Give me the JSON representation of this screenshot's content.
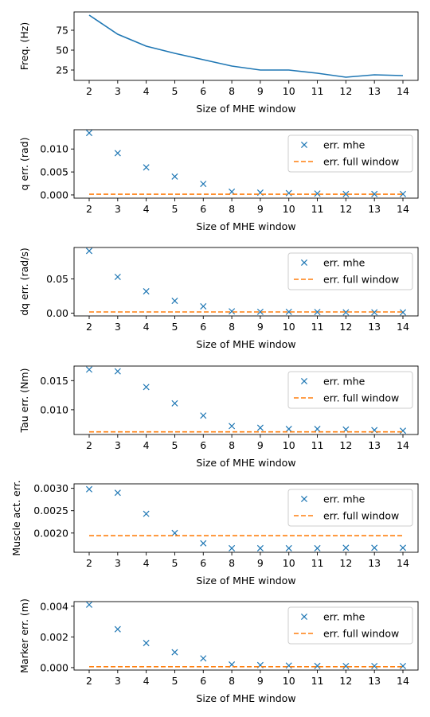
{
  "chart_data": [
    {
      "type": "line",
      "title": "",
      "xlabel": "Size of MHE window",
      "ylabel": "Freq. (Hz)",
      "categories": [
        "2",
        "3",
        "4",
        "5",
        "6",
        "8",
        "9",
        "10",
        "11",
        "12",
        "13",
        "14"
      ],
      "ylim": [
        12,
        98
      ],
      "yticks": [
        {
          "v": 25,
          "label": "25"
        },
        {
          "v": 50,
          "label": "50"
        },
        {
          "v": 75,
          "label": "75"
        }
      ],
      "series": [
        {
          "name": "freq",
          "style": "line",
          "color": "#1f77b4",
          "values": [
            94,
            70,
            55,
            46,
            38,
            30,
            25,
            25,
            21,
            16,
            19,
            18
          ]
        }
      ]
    },
    {
      "type": "line",
      "title": "",
      "xlabel": "Size of MHE window",
      "ylabel": "q err. (rad)",
      "categories": [
        "2",
        "3",
        "4",
        "5",
        "6",
        "8",
        "9",
        "10",
        "11",
        "12",
        "13",
        "14"
      ],
      "ylim": [
        -0.0007,
        0.0142
      ],
      "yticks": [
        {
          "v": 0.0,
          "label": "0.000"
        },
        {
          "v": 0.005,
          "label": "0.005"
        },
        {
          "v": 0.01,
          "label": "0.010"
        }
      ],
      "series": [
        {
          "name": "err. mhe",
          "style": "marker-x",
          "color": "#1f77b4",
          "values": [
            0.0135,
            0.0091,
            0.006,
            0.004,
            0.0024,
            0.0007,
            0.0005,
            0.0004,
            0.0003,
            0.0002,
            0.0002,
            0.0002
          ]
        },
        {
          "name": "err. full window",
          "style": "dashed",
          "color": "#ff7f0e",
          "values": [
            0.00015,
            0.00015,
            0.00015,
            0.00015,
            0.00015,
            0.00015,
            0.00015,
            0.00015,
            0.00015,
            0.00015,
            0.00015,
            0.00015
          ]
        }
      ]
    },
    {
      "type": "line",
      "title": "",
      "xlabel": "Size of MHE window",
      "ylabel": "dq err. (rad/s)",
      "categories": [
        "2",
        "3",
        "4",
        "5",
        "6",
        "8",
        "9",
        "10",
        "11",
        "12",
        "13",
        "14"
      ],
      "ylim": [
        -0.004,
        0.096
      ],
      "yticks": [
        {
          "v": 0.0,
          "label": "0.00"
        },
        {
          "v": 0.05,
          "label": "0.05"
        }
      ],
      "series": [
        {
          "name": "err. mhe",
          "style": "marker-x",
          "color": "#1f77b4",
          "values": [
            0.091,
            0.053,
            0.032,
            0.018,
            0.01,
            0.0027,
            0.002,
            0.002,
            0.0017,
            0.0012,
            0.0012,
            0.0012
          ]
        },
        {
          "name": "err. full window",
          "style": "dashed",
          "color": "#ff7f0e",
          "values": [
            0.0018,
            0.0018,
            0.0018,
            0.0018,
            0.0018,
            0.0018,
            0.0018,
            0.0018,
            0.0018,
            0.0018,
            0.0018,
            0.0018
          ]
        }
      ]
    },
    {
      "type": "line",
      "title": "",
      "xlabel": "Size of MHE window",
      "ylabel": "Tau err. (Nm)",
      "categories": [
        "2",
        "3",
        "4",
        "5",
        "6",
        "8",
        "9",
        "10",
        "11",
        "12",
        "13",
        "14"
      ],
      "ylim": [
        0.00575,
        0.0175
      ],
      "yticks": [
        {
          "v": 0.01,
          "label": "0.010"
        },
        {
          "v": 0.015,
          "label": "0.015"
        }
      ],
      "series": [
        {
          "name": "err. mhe",
          "style": "marker-x",
          "color": "#1f77b4",
          "values": [
            0.0169,
            0.0166,
            0.0139,
            0.0111,
            0.009,
            0.0072,
            0.0069,
            0.0067,
            0.0067,
            0.0066,
            0.0065,
            0.0064
          ]
        },
        {
          "name": "err. full window",
          "style": "dashed",
          "color": "#ff7f0e",
          "values": [
            0.0062,
            0.0062,
            0.0062,
            0.0062,
            0.0062,
            0.0062,
            0.0062,
            0.0062,
            0.0062,
            0.0062,
            0.0062,
            0.0062
          ]
        }
      ]
    },
    {
      "type": "line",
      "title": "",
      "xlabel": "Size of MHE window",
      "ylabel": "Muscle act. err.",
      "categories": [
        "2",
        "3",
        "4",
        "5",
        "6",
        "8",
        "9",
        "10",
        "11",
        "12",
        "13",
        "14"
      ],
      "ylim": [
        0.00157,
        0.0031
      ],
      "yticks": [
        {
          "v": 0.002,
          "label": "0.0020"
        },
        {
          "v": 0.0025,
          "label": "0.0025"
        },
        {
          "v": 0.003,
          "label": "0.0030"
        }
      ],
      "series": [
        {
          "name": "err. mhe",
          "style": "marker-x",
          "color": "#1f77b4",
          "values": [
            0.00298,
            0.0029,
            0.00243,
            0.002,
            0.00177,
            0.00166,
            0.00166,
            0.00166,
            0.00166,
            0.00167,
            0.00167,
            0.00167
          ]
        },
        {
          "name": "err. full window",
          "style": "dashed",
          "color": "#ff7f0e",
          "values": [
            0.00194,
            0.00194,
            0.00194,
            0.00194,
            0.00194,
            0.00194,
            0.00194,
            0.00194,
            0.00194,
            0.00194,
            0.00194,
            0.00194
          ]
        }
      ]
    },
    {
      "type": "line",
      "title": "",
      "xlabel": "Size of MHE window",
      "ylabel": "Marker err. (m)",
      "categories": [
        "2",
        "3",
        "4",
        "5",
        "6",
        "8",
        "9",
        "10",
        "11",
        "12",
        "13",
        "14"
      ],
      "ylim": [
        -0.00016,
        0.0043
      ],
      "yticks": [
        {
          "v": 0.0,
          "label": "0.000"
        },
        {
          "v": 0.002,
          "label": "0.002"
        },
        {
          "v": 0.004,
          "label": "0.004"
        }
      ],
      "series": [
        {
          "name": "err. mhe",
          "style": "marker-x",
          "color": "#1f77b4",
          "values": [
            0.0041,
            0.0025,
            0.0016,
            0.001,
            0.0006,
            0.0002,
            0.00016,
            0.00013,
            0.00011,
            0.0001,
            0.0001,
            0.0001
          ]
        },
        {
          "name": "err. full window",
          "style": "dashed",
          "color": "#ff7f0e",
          "values": [
            6e-05,
            6e-05,
            6e-05,
            6e-05,
            6e-05,
            6e-05,
            6e-05,
            6e-05,
            6e-05,
            6e-05,
            6e-05,
            6e-05
          ]
        }
      ]
    }
  ]
}
